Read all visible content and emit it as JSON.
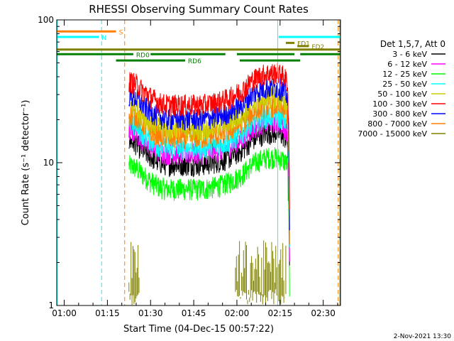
{
  "chart_data": {
    "type": "line",
    "title": "RHESSI Observing Summary Count Rates",
    "xlabel": "Start Time (04-Dec-15 00:57:22)",
    "ylabel": "Count Rate (s⁻¹ detector⁻¹)",
    "yscale": "log",
    "ylim": [
      1,
      100
    ],
    "xlim_minutes": [
      57.4,
      156
    ],
    "x_ticks": [
      {
        "minute": 60,
        "label": "01:00"
      },
      {
        "minute": 75,
        "label": "01:15"
      },
      {
        "minute": 90,
        "label": "01:30"
      },
      {
        "minute": 105,
        "label": "01:45"
      },
      {
        "minute": 120,
        "label": "02:00"
      },
      {
        "minute": 135,
        "label": "02:15"
      },
      {
        "minute": 150,
        "label": "02:30"
      }
    ],
    "y_ticks": [
      {
        "value": 1,
        "label": "1"
      },
      {
        "value": 10,
        "label": "10"
      },
      {
        "value": 100,
        "label": "100"
      }
    ],
    "legend_title": "Det 1,5,7, Att 0",
    "legend_position": "right",
    "series": [
      {
        "name": "3 - 6 keV",
        "color": "#000000",
        "offset": 0.72
      },
      {
        "name": "6 - 12 keV",
        "color": "#ff00ff",
        "offset": 0.82
      },
      {
        "name": "12 - 25 keV",
        "color": "#00ff00",
        "offset": 0.55
      },
      {
        "name": "25 - 50 keV",
        "color": "#00ffff",
        "offset": 0.88
      },
      {
        "name": "50 - 100 keV",
        "color": "#cccc00",
        "offset": 1.15
      },
      {
        "name": "100 - 300 keV",
        "color": "#ff0000",
        "offset": 1.7
      },
      {
        "name": "300 - 800 keV",
        "color": "#0000ff",
        "offset": 1.35
      },
      {
        "name": "800 - 7000 keV",
        "color": "#ff8000",
        "offset": 1.0
      },
      {
        "name": "7000 - 15000 keV",
        "color": "#808000",
        "offset": 0
      }
    ],
    "base_profile": [
      [
        82.5,
        22
      ],
      [
        85,
        21
      ],
      [
        87,
        19
      ],
      [
        90,
        17
      ],
      [
        93,
        15.5
      ],
      [
        96,
        15
      ],
      [
        100,
        15
      ],
      [
        104,
        15
      ],
      [
        108,
        15
      ],
      [
        112,
        15.5
      ],
      [
        115,
        16
      ],
      [
        118,
        17
      ],
      [
        120,
        18
      ],
      [
        122,
        19
      ],
      [
        125,
        22
      ],
      [
        128,
        24
      ],
      [
        131,
        25
      ],
      [
        134,
        25
      ],
      [
        136,
        24
      ],
      [
        137.5,
        22
      ],
      [
        138.3,
        3
      ]
    ],
    "top_band": {
      "name": "7000 - 15000 keV",
      "level": 2.6,
      "segments": [
        [
          82.5,
          86
        ],
        [
          119.5,
          137
        ]
      ]
    },
    "flag_lines": [
      {
        "label": "S",
        "color": "#ff8000",
        "y": 83,
        "x": [
          57.4,
          78
        ]
      },
      {
        "label": "N",
        "color": "#00ffff",
        "y": 76,
        "x": [
          57.4,
          72
        ]
      },
      {
        "label": "",
        "color": "#00ffff",
        "y": 76,
        "x": [
          134.5,
          156
        ]
      },
      {
        "label": "FD1",
        "color": "#808000",
        "y": 69,
        "x": [
          137,
          140
        ]
      },
      {
        "label": "FD2",
        "color": "#808000",
        "y": 65.5,
        "x": [
          141,
          145
        ]
      },
      {
        "label": "",
        "color": "#808000",
        "y": 62,
        "x": [
          57.4,
          156
        ]
      },
      {
        "label": "RD0",
        "color": "#008000",
        "y": 57.5,
        "x": [
          57.4,
          84
        ]
      },
      {
        "label": "",
        "color": "#008000",
        "y": 57.5,
        "x": [
          90,
          116
        ]
      },
      {
        "label": "",
        "color": "#008000",
        "y": 57.5,
        "x": [
          120,
          140
        ]
      },
      {
        "label": "",
        "color": "#008000",
        "y": 57.5,
        "x": [
          142,
          156
        ]
      },
      {
        "label": "RD6",
        "color": "#008000",
        "y": 52,
        "x": [
          78,
          102
        ]
      },
      {
        "label": "",
        "color": "#008000",
        "y": 52,
        "x": [
          121,
          142
        ]
      }
    ],
    "vertical_lines": [
      {
        "color": "#00ffff",
        "style": "solid",
        "minute": 57.6
      },
      {
        "color": "#00ffff",
        "style": "dashed",
        "minute": 73
      },
      {
        "color": "#ff8000",
        "style": "dashed",
        "minute": 81
      },
      {
        "color": "#00ffff",
        "style": "solid",
        "minute": 134.2
      },
      {
        "color": "#ff8000",
        "style": "dashed",
        "minute": 155.2
      },
      {
        "color": "#808000",
        "style": "solid",
        "minute": 155.8
      }
    ],
    "footer_timestamp": "2-Nov-2021 13:30"
  }
}
